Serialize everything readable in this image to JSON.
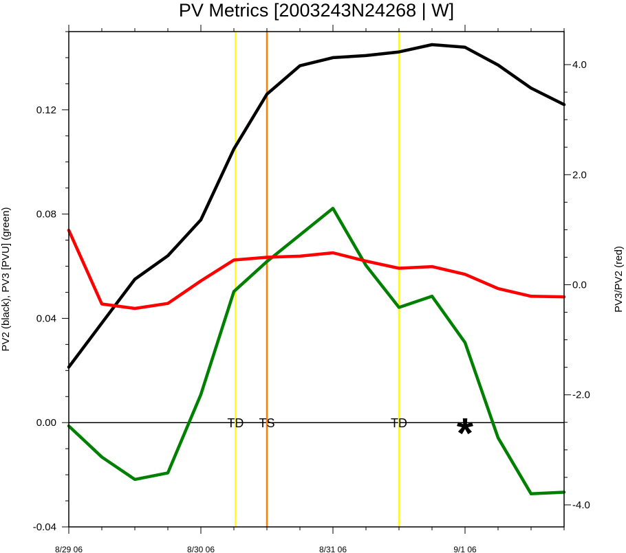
{
  "chart_data": {
    "type": "line",
    "title": "PV Metrics [2003243N24268 | W]",
    "ylabel_left": "PV2 (black), PV3 [PVU] (green)",
    "ylabel_right": "PV3/PV2 (red)",
    "x_ticks": [
      {
        "x": 0,
        "label": "8/29 06"
      },
      {
        "x": 4,
        "label": "8/30 06"
      },
      {
        "x": 8,
        "label": "8/31 06"
      },
      {
        "x": 12,
        "label": "9/1 06"
      }
    ],
    "xlim": [
      0,
      15
    ],
    "y_left": {
      "lim": [
        -0.04,
        0.15
      ],
      "ticks": [
        -0.04,
        0.0,
        0.04,
        0.08,
        0.12
      ],
      "tick_labels": [
        "-0.04",
        "0.00",
        "0.04",
        "0.08",
        "0.12"
      ]
    },
    "y_right": {
      "lim": [
        -4.4,
        4.6
      ],
      "ticks": [
        -4,
        -2,
        0,
        2,
        4
      ],
      "tick_labels": [
        "-4.0",
        "-2.0",
        "0.0",
        "2.0",
        "4.0"
      ]
    },
    "series": [
      {
        "axis": "left",
        "color": "#000000",
        "x": [
          0,
          1,
          2,
          3,
          4,
          5,
          6,
          7,
          8,
          9,
          10,
          11,
          12,
          13,
          14,
          15
        ],
        "values": [
          0.0213,
          0.0382,
          0.055,
          0.064,
          0.0778,
          0.105,
          0.126,
          0.1369,
          0.14,
          0.1408,
          0.1422,
          0.145,
          0.144,
          0.1372,
          0.1283,
          0.122
        ]
      },
      {
        "axis": "left",
        "color": "#008000",
        "x": [
          0,
          1,
          2,
          3,
          4,
          5,
          6,
          7,
          8,
          9,
          10,
          11,
          12,
          13,
          14,
          15
        ],
        "values": [
          -0.0013,
          -0.0132,
          -0.0218,
          -0.0193,
          0.0108,
          0.0503,
          0.0618,
          0.072,
          0.0822,
          0.0603,
          0.0442,
          0.0485,
          0.0307,
          -0.0058,
          -0.0273,
          -0.0267
        ]
      },
      {
        "axis": "right",
        "color": "#ff0000",
        "x": [
          0,
          1,
          2,
          3,
          4,
          5,
          6,
          7,
          8,
          9,
          10,
          11,
          12,
          13,
          14,
          15
        ],
        "values": [
          0.99,
          -0.35,
          -0.43,
          -0.34,
          0.07,
          0.45,
          0.5,
          0.52,
          0.58,
          0.43,
          0.3,
          0.33,
          0.19,
          -0.07,
          -0.21,
          -0.22
        ]
      }
    ],
    "vlines": [
      {
        "x": 5.05,
        "color": "#ffff00",
        "label": "TD"
      },
      {
        "x": 6.0,
        "color": "#ff8000",
        "label": "TS"
      },
      {
        "x": 10.0,
        "color": "#ffff00",
        "label": "TD"
      }
    ],
    "zero_line": 0.0,
    "marker": {
      "x": 12.0,
      "y": 0.0,
      "symbol": "*"
    }
  }
}
